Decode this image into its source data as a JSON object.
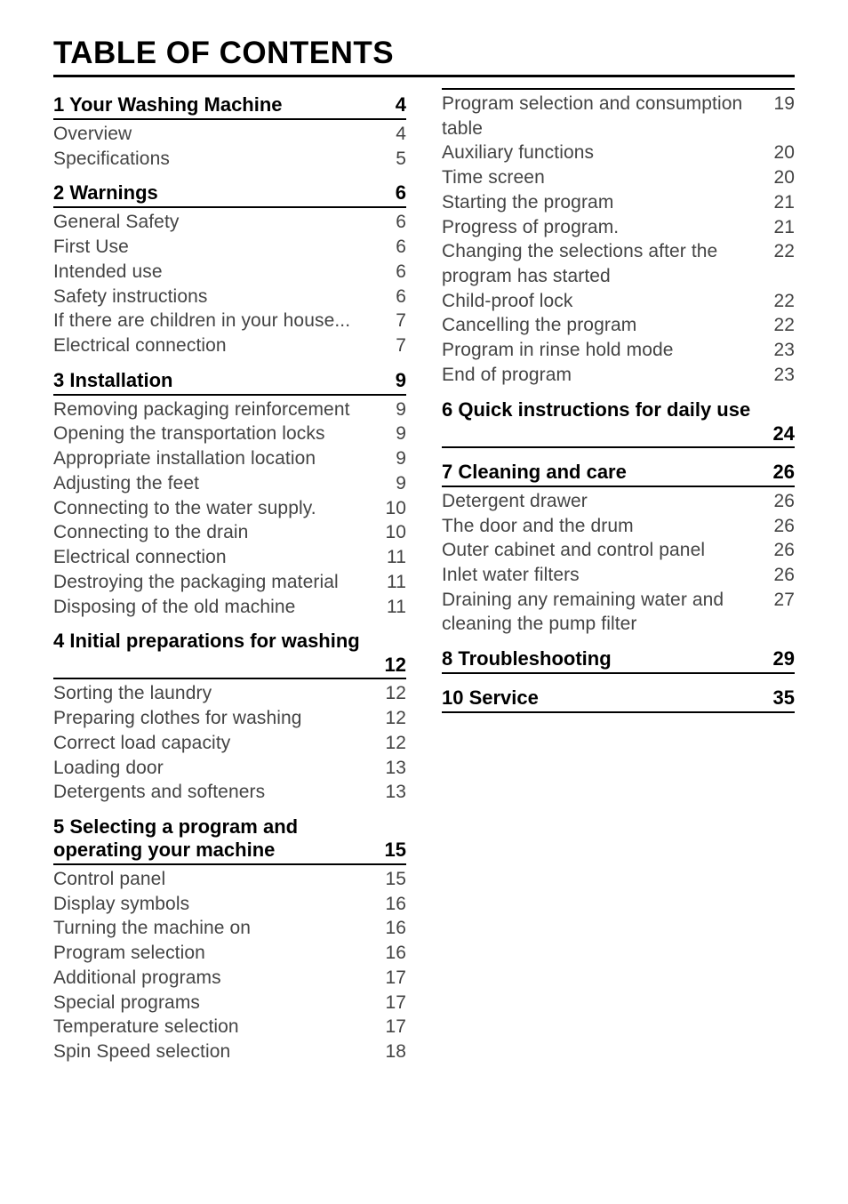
{
  "title": "TABLE OF CONTENTS",
  "leftColumn": {
    "sections": [
      {
        "heading": "1  Your Washing Machine",
        "page": "4",
        "items": [
          {
            "label": "Overview",
            "pg": "4"
          },
          {
            "label": "Specifications",
            "pg": "5"
          }
        ]
      },
      {
        "heading": "2  Warnings",
        "page": "6",
        "items": [
          {
            "label": "General Safety",
            "pg": "6"
          },
          {
            "label": "First Use",
            "pg": "6"
          },
          {
            "label": "Intended use",
            "pg": "6"
          },
          {
            "label": "Safety instructions",
            "pg": "6"
          },
          {
            "label": "If there are children in your house...",
            "pg": "7"
          },
          {
            "label": "Electrical connection",
            "pg": "7"
          }
        ]
      },
      {
        "heading": "3  Installation",
        "page": "9",
        "items": [
          {
            "label": "Removing packaging reinforcement",
            "pg": "9"
          },
          {
            "label": "Opening the transportation locks",
            "pg": "9"
          },
          {
            "label": "Appropriate installation location",
            "pg": "9"
          },
          {
            "label": "Adjusting the feet",
            "pg": "9"
          },
          {
            "label": "Connecting to the water supply.",
            "pg": "10"
          },
          {
            "label": "Connecting to the drain",
            "pg": "10"
          },
          {
            "label": "Electrical connection",
            "pg": "11"
          },
          {
            "label": "Destroying the packaging material",
            "pg": "11"
          },
          {
            "label": "Disposing of the old machine",
            "pg": "11"
          }
        ]
      },
      {
        "heading": "4  Initial preparations for washing",
        "page": "12",
        "pageBelow": true,
        "items": [
          {
            "label": "Sorting the laundry",
            "pg": "12"
          },
          {
            "label": "Preparing clothes for washing",
            "pg": "12"
          },
          {
            "label": "Correct load capacity",
            "pg": "12"
          },
          {
            "label": "Loading door",
            "pg": "13"
          },
          {
            "label": "Detergents and softeners",
            "pg": "13"
          }
        ]
      },
      {
        "heading": "5  Selecting a program and operating your machine",
        "page": "15",
        "items": [
          {
            "label": "Control panel",
            "pg": "15"
          },
          {
            "label": "Display symbols",
            "pg": "16"
          },
          {
            "label": "Turning the machine on",
            "pg": "16"
          },
          {
            "label": "Program selection",
            "pg": "16"
          },
          {
            "label": "Additional programs",
            "pg": "17"
          },
          {
            "label": "Special programs",
            "pg": "17"
          },
          {
            "label": "Temperature selection",
            "pg": "17"
          },
          {
            "label": "Spin Speed selection",
            "pg": "18"
          }
        ]
      }
    ]
  },
  "rightColumn": {
    "continuationItems": [
      {
        "label": "Program selection and consumption table",
        "pg": "19"
      },
      {
        "label": "Auxiliary functions",
        "pg": "20"
      },
      {
        "label": "Time screen",
        "pg": "20"
      },
      {
        "label": "Starting the program",
        "pg": "21"
      },
      {
        "label": "Progress of program.",
        "pg": "21"
      },
      {
        "label": "Changing the selections after the program has started",
        "pg": "22"
      },
      {
        "label": "Child-proof lock",
        "pg": "22"
      },
      {
        "label": "Cancelling the program",
        "pg": "22"
      },
      {
        "label": "Program in rinse hold mode",
        "pg": "23"
      },
      {
        "label": "End of program",
        "pg": "23"
      }
    ],
    "sections": [
      {
        "heading": "6  Quick instructions for daily use",
        "page": "24",
        "pageBelow": true,
        "items": []
      },
      {
        "heading": "7  Cleaning and care",
        "page": "26",
        "items": [
          {
            "label": "Detergent drawer",
            "pg": "26"
          },
          {
            "label": "The door and the drum",
            "pg": "26"
          },
          {
            "label": "Outer cabinet and control panel",
            "pg": "26"
          },
          {
            "label": "Inlet water filters",
            "pg": "26"
          },
          {
            "label": "Draining any remaining water and cleaning the pump filter",
            "pg": "27"
          }
        ]
      },
      {
        "heading": "8  Troubleshooting",
        "page": "29",
        "items": []
      },
      {
        "heading": "10  Service",
        "page": "35",
        "items": []
      }
    ]
  }
}
